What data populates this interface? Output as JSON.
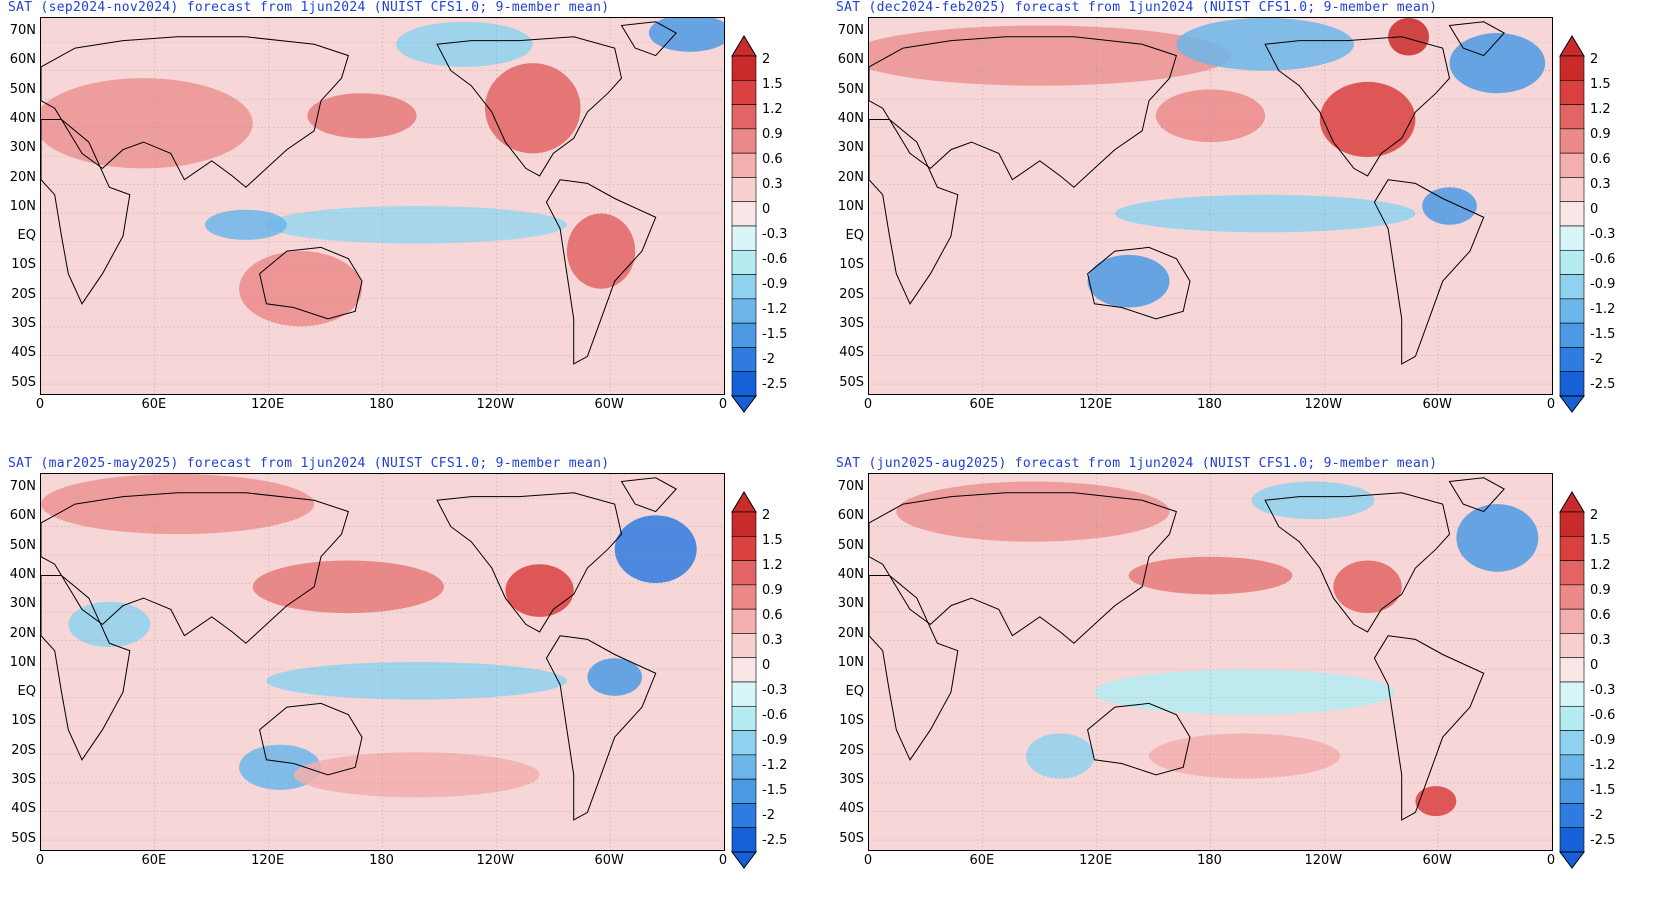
{
  "panels": [
    {
      "title": "SAT (sep2024-nov2024) forecast from 1jun2024 (NUIST CFS1.0; 9-member mean)"
    },
    {
      "title": "SAT (dec2024-feb2025) forecast from 1jun2024 (NUIST CFS1.0; 9-member mean)"
    },
    {
      "title": "SAT (mar2025-may2025) forecast from 1jun2024 (NUIST CFS1.0; 9-member mean)"
    },
    {
      "title": "SAT (jun2025-aug2025) forecast from 1jun2024 (NUIST CFS1.0; 9-member mean)"
    }
  ],
  "lat_labels": [
    "70N",
    "60N",
    "50N",
    "40N",
    "30N",
    "20N",
    "10N",
    "EQ",
    "10S",
    "20S",
    "30S",
    "40S",
    "50S"
  ],
  "lon_labels": [
    "0",
    "60E",
    "120E",
    "180",
    "120W",
    "60W",
    "0"
  ],
  "colorbar_labels": [
    "2",
    "1.5",
    "1.2",
    "0.9",
    "0.6",
    "0.3",
    "0",
    "-0.3",
    "-0.6",
    "-0.9",
    "-1.2",
    "-1.5",
    "-2",
    "-2.5"
  ],
  "colorbar_colors": [
    "#c92a2a",
    "#d94040",
    "#e36464",
    "#ec8a8a",
    "#f3aeae",
    "#f8cfcf",
    "#fae6e6",
    "#d8f6f8",
    "#b4ecf2",
    "#8fd2ef",
    "#6cb6ea",
    "#4c9ae4",
    "#2f7be0",
    "#1761d8"
  ]
}
